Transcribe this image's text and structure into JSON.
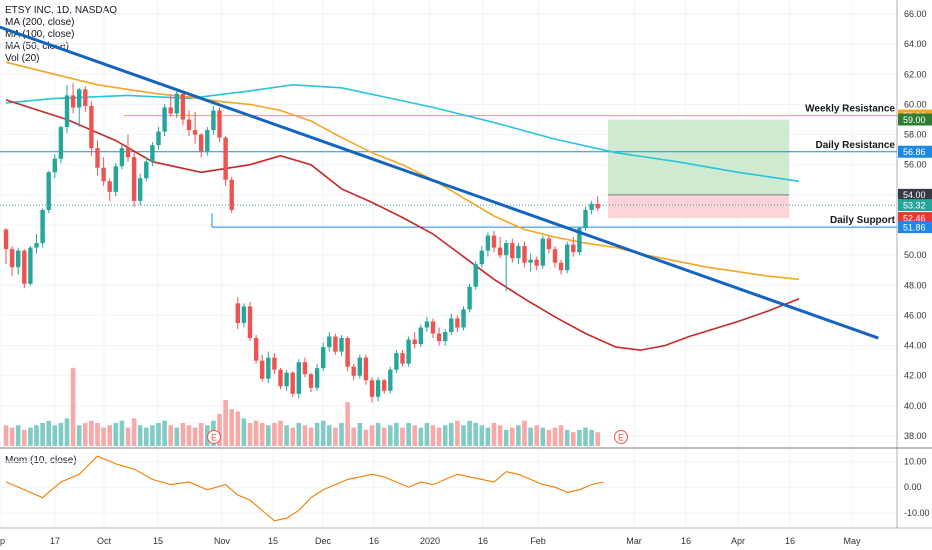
{
  "legend": {
    "symbol": "ETSY INC, 1D, NASDAQ",
    "ma200": "MA (200, close)",
    "ma100": "MA (100, close)",
    "ma50": "MA (50, close)",
    "vol": "Vol (20)"
  },
  "momentum_legend": "Mom (10, close)",
  "colors": {
    "up": "#26a69a",
    "down": "#ef5350",
    "vol_up": "#80cbc4",
    "vol_down": "#f7a9a7",
    "ma200": "#26c6da",
    "ma100": "#f5a623",
    "ma50": "#c62828",
    "trendline": "#1565c0",
    "weekly": "#f5a623",
    "daily": "#1e88e5",
    "momentum": "#f57c00",
    "target_zone": "#c8e6c9",
    "stop_zone": "#ffcdd2"
  },
  "chart_data": [
    {
      "type": "candlestick",
      "title": "ETSY INC, 1D, NASDAQ",
      "ylim": [
        37.2,
        66.8
      ],
      "y_ticks": [
        "66.00",
        "64.00",
        "62.00",
        "60.00",
        "58.00",
        "56.00",
        "54.00",
        "52.00",
        "50.00",
        "48.00",
        "46.00",
        "44.00",
        "42.00",
        "40.00",
        "38.00"
      ],
      "x_ticks": [
        "ep",
        "17",
        "Oct",
        "15",
        "Nov",
        "15",
        "Dec",
        "16",
        "2020",
        "16",
        "Feb",
        "Mar",
        "16",
        "Apr",
        "16",
        "May"
      ],
      "series": [
        {
          "name": "MA (200, close)",
          "x": [
            0,
            8,
            20,
            30,
            40,
            47,
            55,
            62,
            70,
            80,
            90,
            100,
            110,
            120,
            130
          ],
          "values": [
            60.1,
            60.4,
            60.6,
            60.4,
            60.9,
            61.3,
            61.1,
            60.5,
            59.8,
            58.8,
            57.7,
            56.8,
            56.2,
            55.5,
            54.9
          ]
        },
        {
          "name": "MA (100, close)",
          "x": [
            0,
            5,
            10,
            15,
            20,
            25,
            30,
            35,
            40,
            45,
            50,
            55,
            60,
            65,
            70,
            75,
            80,
            85,
            90,
            95,
            100,
            105,
            110,
            115,
            120,
            125,
            130
          ],
          "values": [
            62.8,
            62.3,
            61.8,
            61.3,
            61.0,
            60.7,
            60.5,
            60.2,
            60.0,
            59.6,
            58.9,
            57.8,
            56.8,
            56.0,
            55.0,
            53.8,
            52.6,
            51.7,
            51.2,
            50.8,
            50.5,
            50.0,
            49.6,
            49.2,
            48.9,
            48.6,
            48.4
          ]
        },
        {
          "name": "MA (50, close)",
          "x": [
            0,
            10,
            18,
            24,
            32,
            40,
            45,
            50,
            55,
            60,
            65,
            70,
            75,
            80,
            85,
            90,
            95,
            100,
            104,
            108,
            112,
            116,
            120,
            125,
            130
          ],
          "values": [
            60.3,
            59.0,
            57.6,
            56.2,
            55.5,
            56.0,
            56.6,
            56.0,
            54.4,
            53.5,
            52.5,
            51.4,
            49.9,
            48.4,
            47.1,
            45.9,
            44.8,
            43.9,
            43.7,
            44.0,
            44.6,
            45.1,
            45.6,
            46.3,
            47.1
          ]
        }
      ],
      "levels": [
        {
          "label": "Weekly Resistance",
          "value": 59.26
        },
        {
          "label": "Daily Resistance",
          "value": 56.86
        },
        {
          "label": "Daily Support",
          "value": 51.86
        }
      ],
      "price_tags": [
        "59.26",
        "59.00",
        "56.86",
        "54.00",
        "53.32",
        "52.46",
        "51.86"
      ],
      "position": {
        "entry": 54.0,
        "target": 59.0,
        "stop": 52.46
      },
      "trendline": {
        "from": [
          -5,
          65.7
        ],
        "to": [
          143,
          44.5
        ]
      },
      "earnings_markers": [
        "E",
        "E"
      ],
      "candles": [
        [
          51.7,
          51.8,
          49.4,
          50.4
        ],
        [
          50.4,
          50.6,
          48.6,
          49.2
        ],
        [
          49.2,
          50.5,
          48.7,
          50.3
        ],
        [
          50.3,
          50.4,
          47.8,
          48.1
        ],
        [
          48.1,
          50.6,
          48.0,
          50.5
        ],
        [
          50.5,
          51.4,
          50.1,
          50.8
        ],
        [
          50.8,
          53.1,
          50.5,
          53.0
        ],
        [
          53.0,
          55.6,
          52.8,
          55.5
        ],
        [
          55.5,
          56.7,
          55.1,
          56.4
        ],
        [
          56.4,
          58.6,
          56.1,
          58.5
        ],
        [
          58.5,
          61.3,
          58.1,
          60.6
        ],
        [
          60.6,
          61.4,
          59.4,
          59.8
        ],
        [
          59.8,
          61.1,
          58.5,
          61.0
        ],
        [
          61.0,
          61.2,
          59.5,
          59.9
        ],
        [
          59.9,
          60.2,
          56.6,
          57.1
        ],
        [
          57.1,
          57.6,
          55.3,
          55.8
        ],
        [
          55.8,
          56.5,
          54.6,
          54.9
        ],
        [
          54.9,
          55.1,
          53.6,
          54.2
        ],
        [
          54.2,
          56.1,
          53.9,
          55.9
        ],
        [
          55.9,
          57.3,
          55.7,
          57.1
        ],
        [
          57.1,
          58.0,
          56.2,
          56.5
        ],
        [
          56.5,
          56.8,
          53.2,
          53.6
        ],
        [
          53.6,
          55.4,
          53.3,
          55.1
        ],
        [
          55.1,
          56.5,
          54.9,
          56.2
        ],
        [
          56.2,
          57.5,
          55.9,
          57.3
        ],
        [
          57.3,
          58.5,
          57.0,
          58.2
        ],
        [
          58.2,
          60.0,
          57.9,
          59.8
        ],
        [
          59.8,
          60.6,
          59.2,
          59.4
        ],
        [
          59.4,
          60.9,
          59.1,
          60.7
        ],
        [
          60.7,
          60.8,
          58.6,
          59.0
        ],
        [
          59.0,
          59.6,
          57.9,
          58.3
        ],
        [
          58.3,
          59.5,
          57.4,
          58.0
        ],
        [
          58.0,
          58.1,
          56.5,
          56.9
        ],
        [
          56.9,
          58.5,
          56.6,
          58.3
        ],
        [
          58.3,
          59.9,
          58.0,
          59.6
        ],
        [
          59.6,
          59.8,
          57.5,
          57.8
        ],
        [
          57.8,
          57.9,
          54.6,
          55.0
        ],
        [
          55.0,
          55.2,
          52.8,
          53.0
        ],
        [
          46.8,
          47.2,
          45.1,
          45.5
        ],
        [
          45.5,
          46.8,
          45.2,
          46.6
        ],
        [
          46.6,
          46.9,
          44.3,
          44.5
        ],
        [
          44.5,
          44.7,
          42.8,
          43.0
        ],
        [
          43.0,
          43.4,
          41.6,
          41.8
        ],
        [
          41.8,
          43.6,
          41.5,
          43.2
        ],
        [
          43.2,
          43.5,
          42.1,
          42.4
        ],
        [
          42.4,
          42.5,
          41.1,
          41.3
        ],
        [
          41.3,
          42.4,
          41.0,
          42.2
        ],
        [
          42.2,
          42.3,
          40.6,
          40.8
        ],
        [
          40.8,
          43.1,
          40.5,
          42.9
        ],
        [
          42.9,
          43.2,
          41.9,
          42.1
        ],
        [
          42.1,
          42.2,
          40.9,
          41.2
        ],
        [
          41.2,
          42.8,
          41.0,
          42.5
        ],
        [
          42.5,
          44.2,
          42.3,
          43.9
        ],
        [
          43.9,
          44.9,
          43.6,
          44.6
        ],
        [
          44.6,
          44.8,
          43.4,
          43.6
        ],
        [
          43.6,
          44.7,
          43.3,
          44.5
        ],
        [
          44.5,
          44.6,
          42.3,
          42.6
        ],
        [
          42.6,
          42.8,
          41.7,
          42.0
        ],
        [
          42.0,
          43.4,
          41.8,
          43.2
        ],
        [
          43.2,
          43.4,
          41.4,
          41.7
        ],
        [
          41.7,
          41.9,
          40.2,
          40.6
        ],
        [
          40.6,
          41.9,
          40.3,
          41.7
        ],
        [
          41.7,
          41.8,
          40.8,
          41.0
        ],
        [
          41.0,
          42.6,
          40.8,
          42.4
        ],
        [
          42.4,
          43.7,
          42.2,
          43.5
        ],
        [
          43.5,
          43.7,
          42.6,
          42.8
        ],
        [
          42.8,
          44.6,
          42.6,
          44.4
        ],
        [
          44.4,
          44.9,
          43.8,
          44.1
        ],
        [
          44.1,
          45.4,
          43.9,
          45.2
        ],
        [
          45.2,
          45.9,
          44.9,
          45.6
        ],
        [
          45.6,
          45.8,
          44.5,
          44.8
        ],
        [
          44.8,
          45.2,
          44.0,
          44.3
        ],
        [
          44.3,
          45.1,
          44.0,
          44.9
        ],
        [
          44.9,
          46.1,
          44.7,
          45.8
        ],
        [
          45.8,
          46.0,
          44.9,
          45.2
        ],
        [
          45.2,
          46.6,
          45.0,
          46.4
        ],
        [
          46.4,
          48.1,
          46.2,
          47.9
        ],
        [
          47.9,
          49.6,
          47.7,
          49.4
        ],
        [
          49.4,
          50.6,
          49.2,
          50.3
        ],
        [
          50.3,
          51.5,
          49.9,
          51.3
        ],
        [
          51.3,
          51.6,
          50.2,
          50.5
        ],
        [
          50.5,
          51.2,
          49.8,
          50.0
        ],
        [
          50.0,
          51.0,
          47.6,
          50.8
        ],
        [
          50.8,
          51.1,
          49.5,
          49.8
        ],
        [
          49.8,
          50.8,
          49.4,
          50.6
        ],
        [
          50.6,
          50.9,
          49.2,
          49.5
        ],
        [
          49.5,
          50.1,
          48.9,
          49.7
        ],
        [
          49.7,
          49.9,
          49.0,
          49.3
        ],
        [
          49.3,
          51.3,
          49.1,
          51.1
        ],
        [
          51.1,
          51.3,
          50.1,
          50.4
        ],
        [
          50.4,
          50.6,
          49.2,
          49.5
        ],
        [
          49.5,
          49.7,
          48.7,
          49.0
        ],
        [
          49.0,
          50.9,
          48.8,
          50.7
        ],
        [
          50.7,
          51.2,
          49.9,
          50.2
        ],
        [
          50.2,
          51.9,
          50.0,
          51.8
        ],
        [
          51.8,
          53.2,
          51.6,
          53.0
        ],
        [
          53.0,
          53.6,
          52.7,
          53.4
        ],
        [
          53.4,
          53.9,
          52.9,
          53.1
        ]
      ],
      "volume_scale_note": "Vol (20)",
      "volume": [
        0.9,
        0.8,
        0.9,
        0.7,
        0.8,
        0.9,
        1.0,
        1.1,
        0.9,
        1.0,
        1.2,
        3.4,
        0.9,
        1.0,
        1.1,
        1.0,
        0.8,
        0.9,
        1.0,
        1.1,
        0.8,
        1.2,
        0.9,
        0.8,
        0.9,
        1.0,
        1.1,
        0.9,
        0.8,
        1.0,
        0.9,
        0.8,
        1.0,
        0.9,
        1.1,
        1.4,
        2.0,
        1.6,
        1.5,
        1.2,
        1.0,
        1.1,
        1.0,
        0.9,
        1.0,
        1.1,
        0.9,
        0.8,
        1.0,
        0.9,
        0.8,
        1.0,
        1.1,
        0.9,
        0.8,
        1.0,
        1.9,
        0.8,
        1.0,
        0.7,
        0.9,
        1.0,
        0.8,
        0.9,
        1.0,
        0.8,
        1.0,
        0.9,
        0.8,
        1.0,
        0.9,
        0.8,
        0.9,
        1.0,
        1.1,
        0.9,
        1.1,
        1.0,
        0.9,
        0.8,
        1.0,
        0.9,
        0.7,
        0.8,
        0.9,
        1.1,
        0.8,
        0.9,
        0.8,
        0.7,
        0.8,
        0.9,
        0.7,
        0.6,
        0.7,
        0.8,
        0.7,
        0.6
      ]
    },
    {
      "type": "line",
      "title": "Mom (10, close)",
      "ylim": [
        -15,
        14
      ],
      "y_ticks": [
        "10.00",
        "0.00",
        "-10.00"
      ],
      "series": [
        {
          "name": "Mom (10, close)",
          "x": [
            0,
            3,
            6,
            9,
            12,
            15,
            18,
            21,
            24,
            27,
            30,
            33,
            36,
            38,
            40,
            42,
            44,
            46,
            48,
            50,
            52,
            54,
            56,
            58,
            60,
            62,
            64,
            66,
            68,
            70,
            72,
            74,
            76,
            78,
            80,
            82,
            84,
            86,
            88,
            90,
            92,
            94,
            96,
            98
          ],
          "values": [
            2,
            -1,
            -4,
            2,
            5,
            12,
            9,
            7,
            3,
            1,
            2,
            -1,
            1,
            -3,
            -5,
            -9,
            -13,
            -12,
            -9,
            -4,
            -1,
            1,
            3,
            4,
            5,
            4,
            2,
            0,
            2,
            1,
            3,
            5,
            4,
            3,
            2,
            6,
            5,
            3,
            1,
            0,
            -2,
            -1,
            1,
            2
          ]
        }
      ]
    }
  ]
}
